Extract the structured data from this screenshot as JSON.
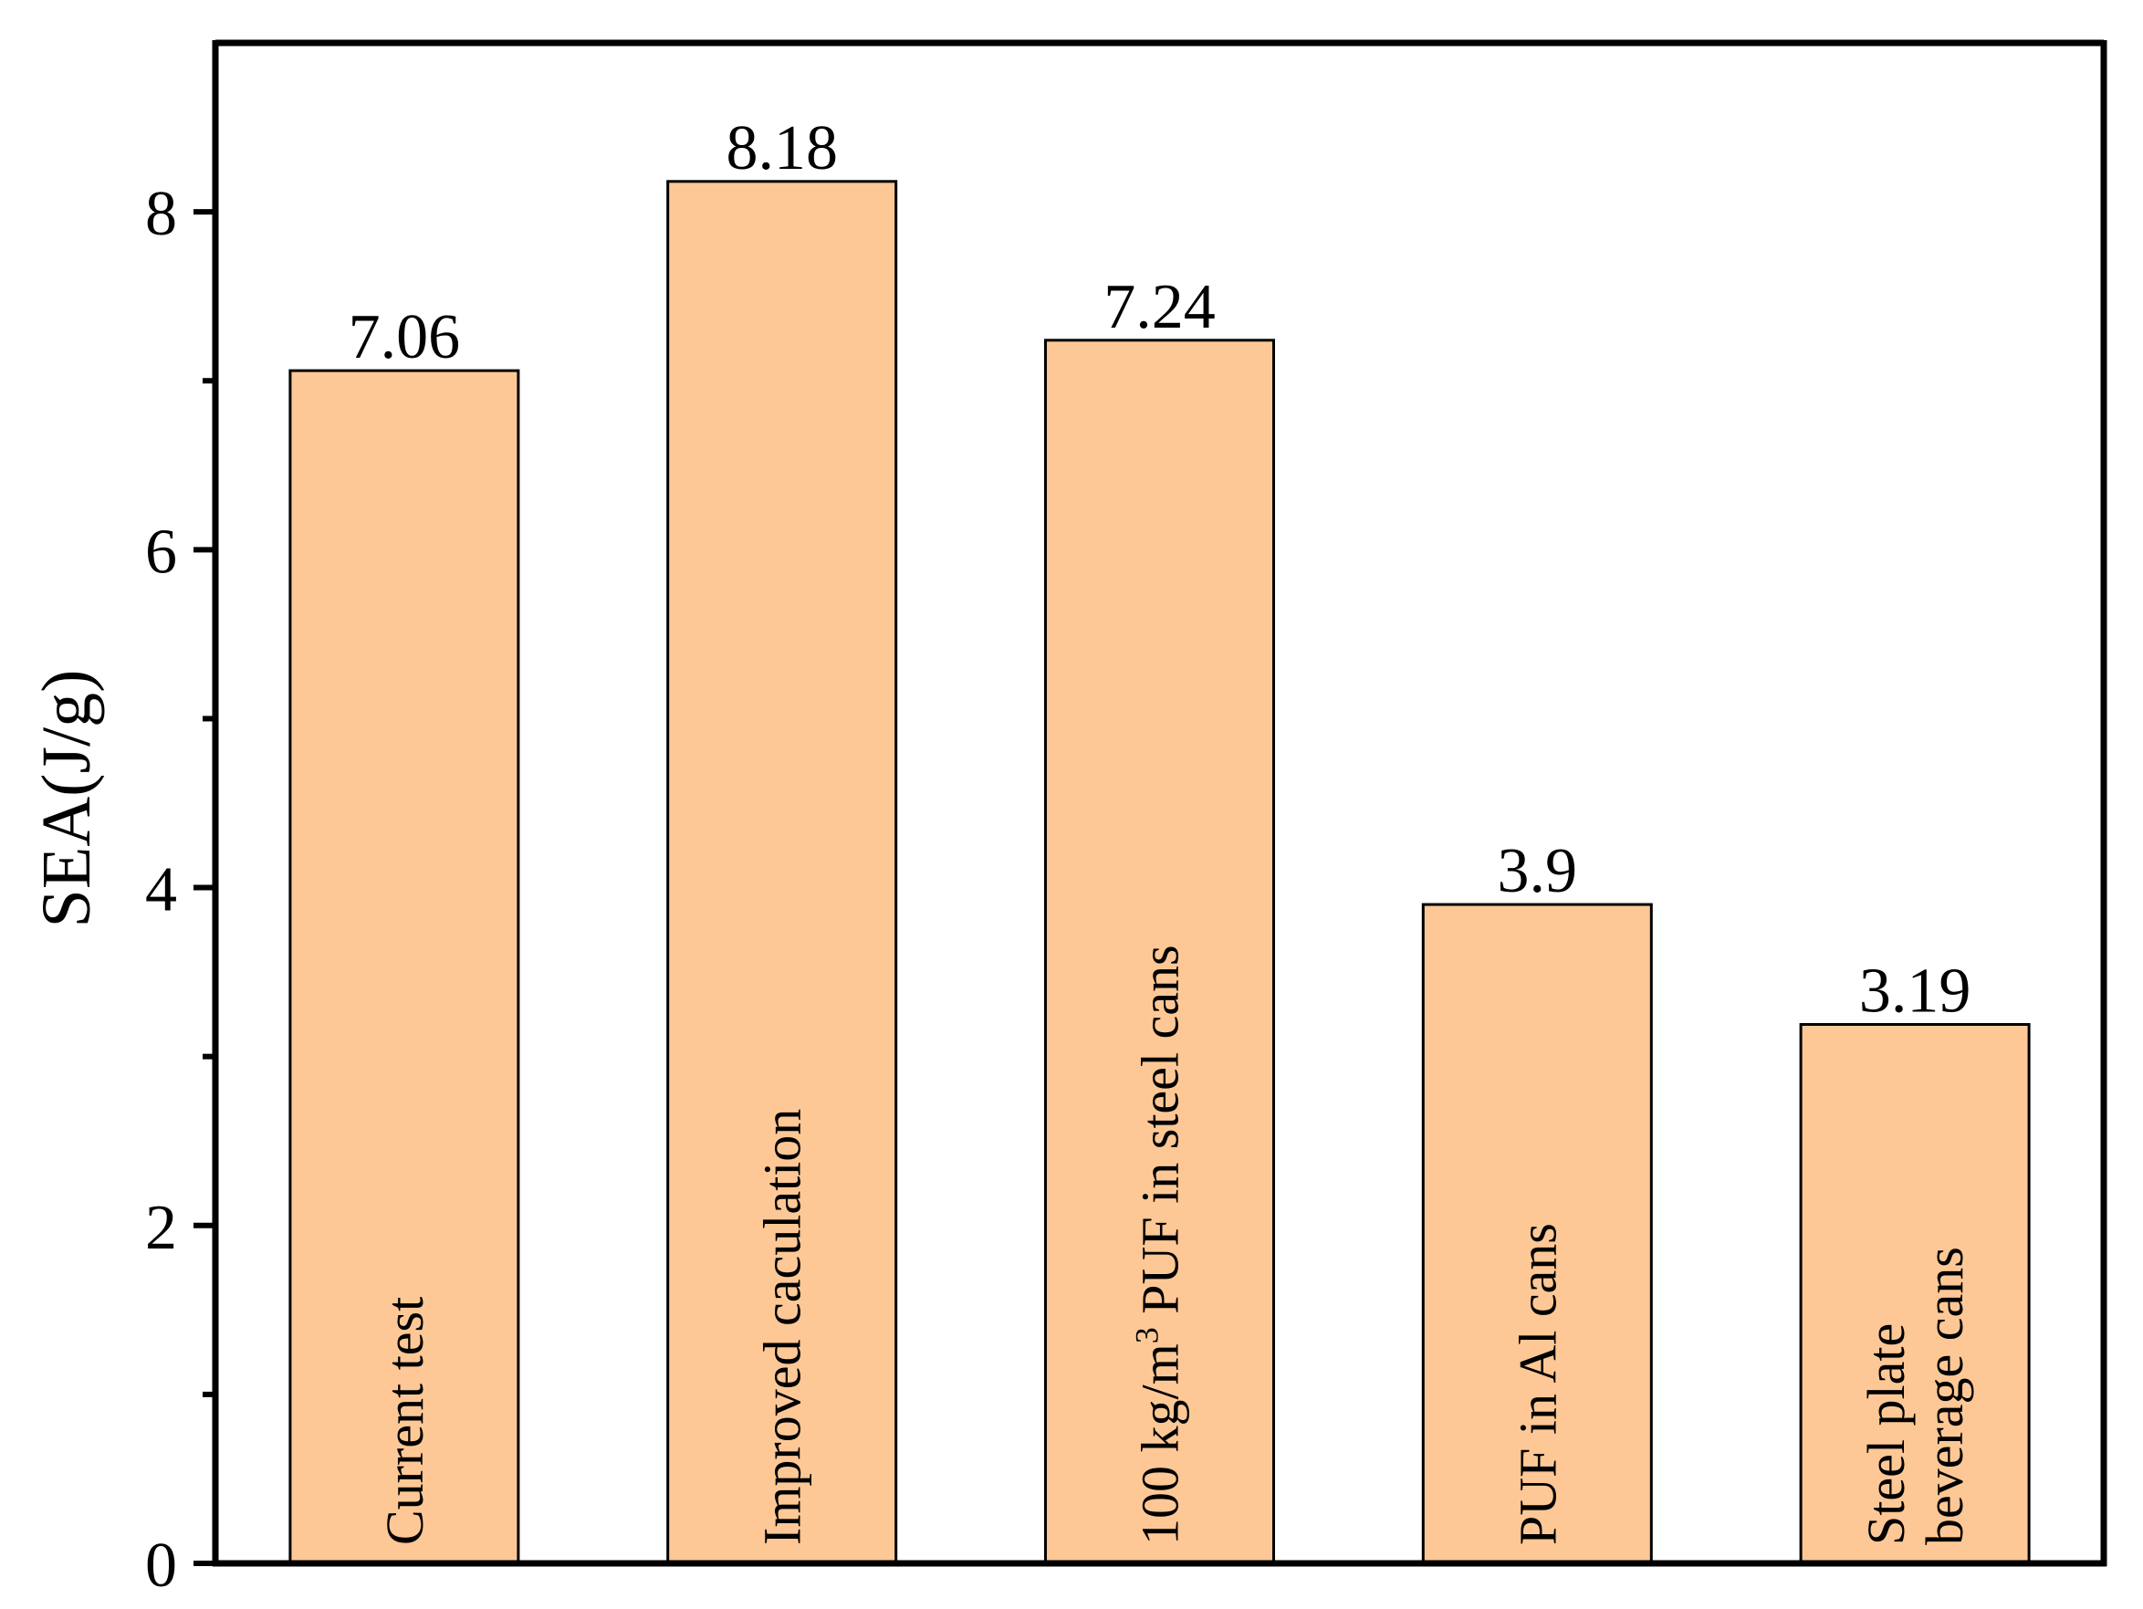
{
  "chart_data": {
    "type": "bar",
    "title": "",
    "xlabel": "",
    "ylabel": "SEA(J/g)",
    "ylim": [
      0,
      9
    ],
    "yticks": [
      0,
      2,
      4,
      6,
      8
    ],
    "ytick_labels": [
      "0",
      "2",
      "4",
      "6",
      "8"
    ],
    "minor_yticks": [
      1,
      3,
      5,
      7
    ],
    "grid": false,
    "bar_color": "#fdc896",
    "categories": [
      "Current test",
      "Improved caculation",
      "100 kg/m3  PUF in steel cans",
      "PUF in Al cans",
      "Steel plate beverage cans"
    ],
    "category_label_lines": [
      [
        "Current test"
      ],
      [
        "Improved caculation"
      ],
      [
        "100 kg/m3  PUF in steel cans"
      ],
      [
        "PUF in Al cans"
      ],
      [
        "Steel plate",
        "beverage cans"
      ]
    ],
    "values": [
      7.06,
      8.18,
      7.24,
      3.9,
      3.19
    ],
    "data_labels": [
      "7.06",
      "8.18",
      "7.24",
      "3.9",
      "3.19"
    ]
  }
}
